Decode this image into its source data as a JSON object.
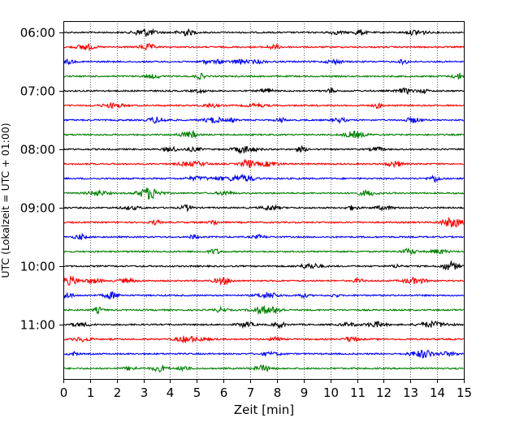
{
  "chart_data": {
    "type": "line",
    "title": "",
    "xlabel": "Zeit  [min]",
    "ylabel": "UTC (Lokalzeit = UTC + 01:00)",
    "xlim": [
      0,
      15
    ],
    "x_ticks": [
      "0",
      "1",
      "2",
      "3",
      "4",
      "5",
      "6",
      "7",
      "8",
      "9",
      "10",
      "11",
      "12",
      "13",
      "14",
      "15"
    ],
    "y_ticks": [
      "06:00",
      "07:00",
      "08:00",
      "09:00",
      "10:00",
      "11:00"
    ],
    "grid": "vertical dotted at each minute",
    "trace_interval_min": 15,
    "trace_start": "06:00",
    "trace_count": 24,
    "trace_colors": [
      "#000000",
      "#ff0000",
      "#0000ff",
      "#008000"
    ],
    "signal": "seismogram noise traces, 15 minutes per line"
  }
}
